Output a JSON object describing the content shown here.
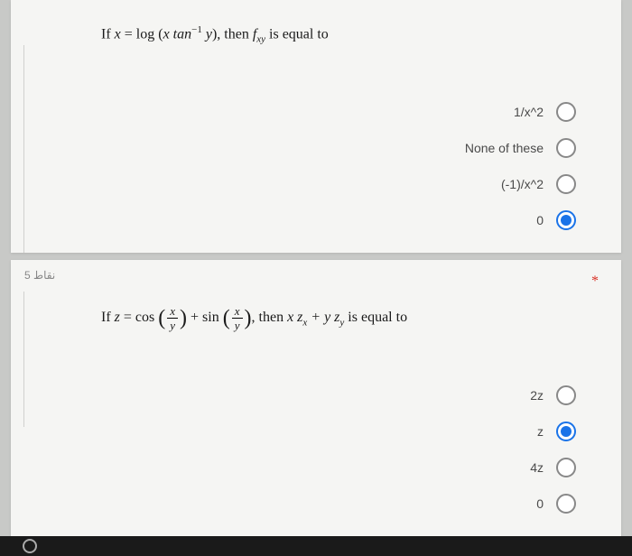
{
  "q1": {
    "prompt_prefix": "If ",
    "prompt_var": "x",
    "prompt_mid": " = log (",
    "prompt_func": "x tan",
    "prompt_exp": "−1",
    "prompt_y": " y",
    "prompt_close": "), then ",
    "prompt_f": "f",
    "prompt_sub": "xy",
    "prompt_tail": " is equal to",
    "options": [
      {
        "label": "1/x^2",
        "selected": false
      },
      {
        "label": "None of these",
        "selected": false
      },
      {
        "label": "(-1)/x^2",
        "selected": false
      },
      {
        "label": "0",
        "selected": true
      }
    ]
  },
  "q2": {
    "points": "نقاط 5",
    "required": "*",
    "prompt_prefix": "If   ",
    "prompt_z": "z",
    "prompt_mid": " = cos ",
    "frac_num": "x",
    "frac_den": "y",
    "prompt_plus": " + sin ",
    "prompt_then": ", then ",
    "prompt_xzx": "x z",
    "prompt_sub_x": "x",
    "prompt_pls2": " +  y z",
    "prompt_sub_y": "y",
    "prompt_tail": " is equal to",
    "options": [
      {
        "label": "2z",
        "selected": false
      },
      {
        "label": "z",
        "selected": true
      },
      {
        "label": "4z",
        "selected": false
      },
      {
        "label": "0",
        "selected": false
      }
    ]
  },
  "colors": {
    "page_bg": "#c8c9c7",
    "card_bg": "#f5f5f3",
    "text": "#1a1a1a",
    "option_text": "#4a4a4a",
    "radio_border": "#888",
    "radio_selected": "#1a73e8",
    "required": "#d93025"
  }
}
